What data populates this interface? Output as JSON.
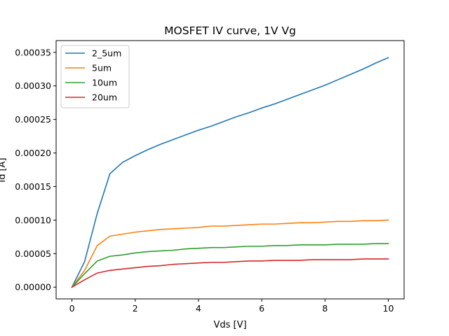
{
  "chart_data": {
    "type": "line",
    "title": "MOSFET IV curve, 1V Vg",
    "xlabel": "Vds [V]",
    "ylabel": "Id [A]",
    "xlim": [
      -0.5,
      10.5
    ],
    "ylim": [
      -1.75e-05,
      0.0003675
    ],
    "xticks": [
      "0",
      "2",
      "4",
      "6",
      "8",
      "10"
    ],
    "yticks": [
      "0.00000",
      "0.00005",
      "0.00010",
      "0.00015",
      "0.00020",
      "0.00025",
      "0.00030",
      "0.00035"
    ],
    "legend_position": "upper-left",
    "grid": false,
    "x": [
      0,
      0.4,
      0.8,
      1.2,
      1.6,
      2.0,
      2.4,
      2.8,
      3.2,
      3.6,
      4.0,
      4.4,
      4.8,
      5.2,
      5.6,
      6.0,
      6.4,
      6.8,
      7.2,
      7.6,
      8.0,
      8.4,
      8.8,
      9.2,
      9.6,
      10.0
    ],
    "series": [
      {
        "name": "2_5um",
        "color": "#1f77b4",
        "values": [
          0,
          3.8e-05,
          0.00011,
          0.000169,
          0.000186,
          0.000196,
          0.000205,
          0.000213,
          0.00022,
          0.000227,
          0.000234,
          0.00024,
          0.000247,
          0.000254,
          0.00026,
          0.000267,
          0.000273,
          0.00028,
          0.000287,
          0.000294,
          0.000301,
          0.000309,
          0.000317,
          0.000325,
          0.000334,
          0.000342
        ]
      },
      {
        "name": "5um",
        "color": "#ff7f0e",
        "values": [
          0,
          2.5e-05,
          6.2e-05,
          7.6e-05,
          7.9e-05,
          8.2e-05,
          8.4e-05,
          8.6e-05,
          8.7e-05,
          8.8e-05,
          8.9e-05,
          9.1e-05,
          9.1e-05,
          9.2e-05,
          9.3e-05,
          9.4e-05,
          9.4e-05,
          9.5e-05,
          9.6e-05,
          9.6e-05,
          9.7e-05,
          9.8e-05,
          9.8e-05,
          9.9e-05,
          9.9e-05,
          0.0001
        ]
      },
      {
        "name": "10um",
        "color": "#2ca02c",
        "values": [
          0,
          2e-05,
          3.9e-05,
          4.6e-05,
          4.8e-05,
          5.1e-05,
          5.3e-05,
          5.4e-05,
          5.5e-05,
          5.7e-05,
          5.8e-05,
          5.9e-05,
          5.9e-05,
          6e-05,
          6.1e-05,
          6.1e-05,
          6.2e-05,
          6.2e-05,
          6.3e-05,
          6.3e-05,
          6.3e-05,
          6.4e-05,
          6.4e-05,
          6.4e-05,
          6.5e-05,
          6.5e-05
        ]
      },
      {
        "name": "20um",
        "color": "#d62728",
        "values": [
          0,
          1.1e-05,
          2.1e-05,
          2.5e-05,
          2.7e-05,
          2.9e-05,
          3.1e-05,
          3.2e-05,
          3.4e-05,
          3.5e-05,
          3.6e-05,
          3.7e-05,
          3.7e-05,
          3.8e-05,
          3.9e-05,
          3.9e-05,
          4e-05,
          4e-05,
          4e-05,
          4.1e-05,
          4.1e-05,
          4.1e-05,
          4.1e-05,
          4.2e-05,
          4.2e-05,
          4.2e-05
        ]
      }
    ]
  }
}
